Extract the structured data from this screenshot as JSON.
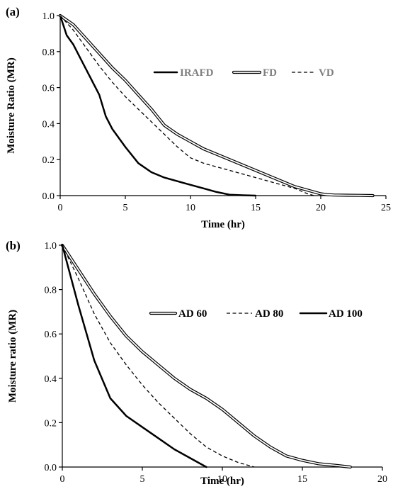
{
  "chart_data": [
    {
      "type": "line",
      "panel_label": "(a)",
      "xlabel": "Time (hr)",
      "ylabel": "Moisture Ratio (MR)",
      "xlim": [
        0,
        25
      ],
      "ylim": [
        0,
        1.0
      ],
      "xticks": [
        "0",
        "5",
        "10",
        "15",
        "20",
        "25"
      ],
      "yticks": [
        "0.0",
        "0.2",
        "0.4",
        "0.6",
        "0.8",
        "1.0"
      ],
      "legend_placement": "center-right",
      "legend_text_color": "#7f7f7f",
      "series": [
        {
          "name": "IRAFD",
          "style": "solid-thick",
          "x": [
            0,
            0.5,
            1,
            1.5,
            2,
            2.5,
            3,
            3.5,
            4,
            5,
            6,
            7,
            8,
            9,
            10,
            11,
            12,
            13,
            14,
            15
          ],
          "y": [
            1.0,
            0.89,
            0.84,
            0.77,
            0.7,
            0.63,
            0.56,
            0.44,
            0.37,
            0.27,
            0.18,
            0.13,
            0.1,
            0.08,
            0.06,
            0.04,
            0.02,
            0.005,
            0.002,
            0.0
          ]
        },
        {
          "name": "FD",
          "style": "double",
          "x": [
            0,
            1,
            2,
            3,
            4,
            5,
            6,
            7,
            8,
            9,
            10,
            11,
            12,
            13,
            14,
            15,
            16,
            17,
            18,
            19,
            20,
            20.5,
            21,
            22,
            23,
            24
          ],
          "y": [
            1.0,
            0.95,
            0.87,
            0.79,
            0.71,
            0.64,
            0.56,
            0.48,
            0.39,
            0.34,
            0.3,
            0.26,
            0.23,
            0.2,
            0.17,
            0.14,
            0.11,
            0.08,
            0.05,
            0.03,
            0.01,
            0.005,
            0.003,
            0.002,
            0.001,
            0.0
          ]
        },
        {
          "name": "VD",
          "style": "dashed",
          "x": [
            0,
            1,
            2,
            3,
            4,
            5,
            6,
            7,
            8,
            9,
            10,
            11,
            12,
            13,
            14,
            15,
            16,
            17,
            18,
            19,
            19.5
          ],
          "y": [
            1.0,
            0.92,
            0.82,
            0.72,
            0.63,
            0.55,
            0.48,
            0.41,
            0.34,
            0.27,
            0.21,
            0.18,
            0.16,
            0.14,
            0.12,
            0.1,
            0.08,
            0.06,
            0.04,
            0.01,
            0.0
          ]
        }
      ]
    },
    {
      "type": "line",
      "panel_label": "(b)",
      "xlabel": "Time (hr)",
      "ylabel": "Moisture ratio (MR)",
      "xlim": [
        0,
        20
      ],
      "ylim": [
        0,
        1.0
      ],
      "xticks": [
        "0",
        "5",
        "10",
        "15",
        "20"
      ],
      "yticks": [
        "0.0",
        "0.2",
        "0.4",
        "0.6",
        "0.8",
        "1.0"
      ],
      "legend_placement": "center-right",
      "legend_text_color": "#000000",
      "series": [
        {
          "name": "AD 60",
          "style": "double",
          "x": [
            0,
            1,
            2,
            3,
            4,
            5,
            6,
            7,
            8,
            9,
            10,
            11,
            12,
            13,
            14,
            15,
            16,
            17,
            18
          ],
          "y": [
            1.0,
            0.89,
            0.78,
            0.68,
            0.59,
            0.52,
            0.46,
            0.4,
            0.35,
            0.31,
            0.26,
            0.2,
            0.14,
            0.09,
            0.05,
            0.03,
            0.015,
            0.008,
            0.0
          ]
        },
        {
          "name": "AD 80",
          "style": "dashed",
          "x": [
            0,
            1,
            2,
            3,
            4,
            5,
            6,
            7,
            8,
            9,
            10,
            11,
            12
          ],
          "y": [
            1.0,
            0.85,
            0.69,
            0.56,
            0.46,
            0.37,
            0.29,
            0.22,
            0.15,
            0.09,
            0.05,
            0.02,
            0.0
          ]
        },
        {
          "name": "AD 100",
          "style": "solid-thick",
          "x": [
            0,
            1,
            2,
            3,
            4,
            5,
            6,
            7,
            8,
            9
          ],
          "y": [
            1.0,
            0.73,
            0.48,
            0.31,
            0.23,
            0.18,
            0.13,
            0.08,
            0.04,
            0.0
          ]
        }
      ]
    }
  ]
}
